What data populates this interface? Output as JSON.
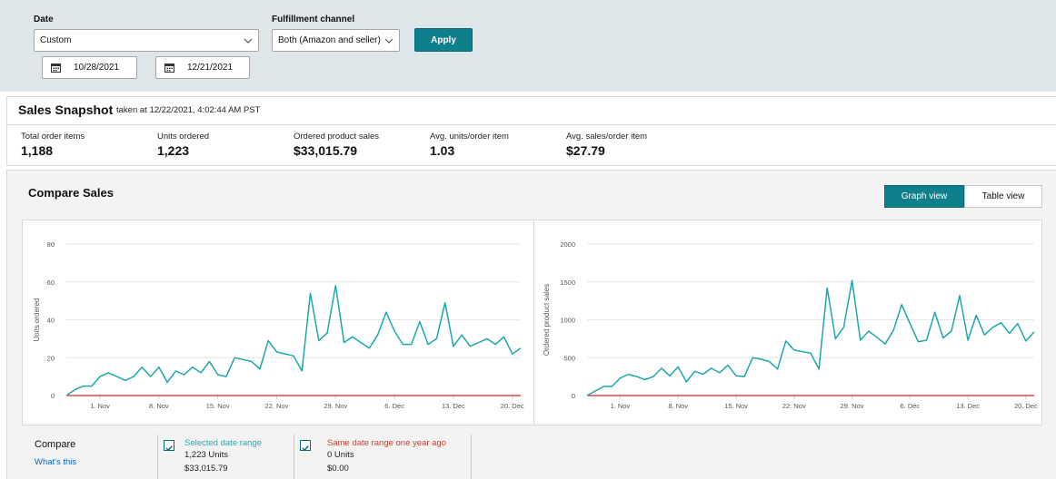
{
  "filters": {
    "date_label": "Date",
    "date_value": "Custom",
    "start_date": "10/28/2021",
    "end_date": "12/21/2021",
    "fulfillment_label": "Fulfillment channel",
    "fulfillment_value": "Both (Amazon and seller)",
    "apply_label": "Apply"
  },
  "snapshot": {
    "title": "Sales Snapshot",
    "taken": "taken at 12/22/2021, 4:02:44 AM PST",
    "metrics": [
      {
        "label": "Total order items",
        "value": "1,188"
      },
      {
        "label": "Units ordered",
        "value": "1,223"
      },
      {
        "label": "Ordered product sales",
        "value": "$33,015.79"
      },
      {
        "label": "Avg. units/order item",
        "value": "1.03"
      },
      {
        "label": "Avg. sales/order item",
        "value": "$27.79"
      }
    ]
  },
  "compare": {
    "title": "Compare Sales",
    "graph_view": "Graph view",
    "table_view": "Table view",
    "compare_label": "Compare",
    "whats_this": "What's this",
    "legend": [
      {
        "name": "Selected date range",
        "line1": "1,223 Units",
        "line2": "$33,015.79",
        "color": "#2ca5b0"
      },
      {
        "name": "Same date range one year ago",
        "line1": "0 Units",
        "line2": "$0.00",
        "color": "#d13b2d"
      }
    ]
  },
  "colors": {
    "accent": "#0f7f8c",
    "series_current": "#1da7ad",
    "series_prior": "#e0474c"
  },
  "chart_data": [
    {
      "type": "line",
      "ylabel": "Units ordered",
      "ylim": [
        0,
        80
      ],
      "yticks": [
        0,
        20,
        40,
        60,
        80
      ],
      "x_tick_labels": [
        "1. Nov",
        "8. Nov",
        "15. Nov",
        "22. Nov",
        "29. Nov",
        "6. Dec",
        "13. Dec",
        "20. Dec"
      ],
      "x_tick_days": [
        4,
        11,
        18,
        25,
        32,
        39,
        46,
        53
      ],
      "x_range_days": [
        0,
        54
      ],
      "series": [
        {
          "name": "Selected date range",
          "color": "#1da7ad",
          "values": [
            0,
            3,
            5,
            5,
            10,
            12,
            10,
            8,
            10,
            15,
            10,
            15,
            7,
            13,
            11,
            15,
            12,
            18,
            11,
            10,
            20,
            19,
            18,
            14,
            29,
            23,
            22,
            21,
            13,
            54,
            29,
            33,
            58,
            28,
            31,
            28,
            25,
            32,
            44,
            34,
            27,
            27,
            39,
            27,
            30,
            49,
            26,
            32,
            26,
            28,
            30,
            27,
            31,
            22,
            25
          ]
        },
        {
          "name": "Same date range one year ago",
          "color": "#e0474c",
          "values": [
            0,
            0,
            0,
            0,
            0,
            0,
            0,
            0,
            0,
            0,
            0,
            0,
            0,
            0,
            0,
            0,
            0,
            0,
            0,
            0,
            0,
            0,
            0,
            0,
            0,
            0,
            0,
            0,
            0,
            0,
            0,
            0,
            0,
            0,
            0,
            0,
            0,
            0,
            0,
            0,
            0,
            0,
            0,
            0,
            0,
            0,
            0,
            0,
            0,
            0,
            0,
            0,
            0,
            0,
            0
          ]
        }
      ]
    },
    {
      "type": "line",
      "ylabel": "Ordered product sales",
      "ylim": [
        0,
        2000
      ],
      "yticks": [
        0,
        500,
        1000,
        1500,
        2000
      ],
      "x_tick_labels": [
        "1. Nov",
        "8. Nov",
        "15. Nov",
        "22. Nov",
        "29. Nov",
        "6. Dec",
        "13. Dec",
        "20. Dec"
      ],
      "x_tick_days": [
        4,
        11,
        18,
        25,
        32,
        39,
        46,
        53
      ],
      "x_range_days": [
        0,
        54
      ],
      "series": [
        {
          "name": "Selected date range",
          "color": "#1da7ad",
          "values": [
            0,
            60,
            120,
            120,
            230,
            280,
            250,
            210,
            250,
            360,
            260,
            380,
            180,
            320,
            280,
            360,
            300,
            400,
            260,
            250,
            500,
            480,
            450,
            350,
            720,
            600,
            580,
            560,
            350,
            1420,
            750,
            900,
            1520,
            730,
            850,
            770,
            680,
            860,
            1200,
            950,
            710,
            730,
            1100,
            760,
            850,
            1320,
            730,
            1060,
            800,
            900,
            960,
            820,
            950,
            720,
            840
          ]
        },
        {
          "name": "Same date range one year ago",
          "color": "#e0474c",
          "values": [
            0,
            0,
            0,
            0,
            0,
            0,
            0,
            0,
            0,
            0,
            0,
            0,
            0,
            0,
            0,
            0,
            0,
            0,
            0,
            0,
            0,
            0,
            0,
            0,
            0,
            0,
            0,
            0,
            0,
            0,
            0,
            0,
            0,
            0,
            0,
            0,
            0,
            0,
            0,
            0,
            0,
            0,
            0,
            0,
            0,
            0,
            0,
            0,
            0,
            0,
            0,
            0,
            0,
            0,
            0
          ]
        }
      ]
    }
  ]
}
